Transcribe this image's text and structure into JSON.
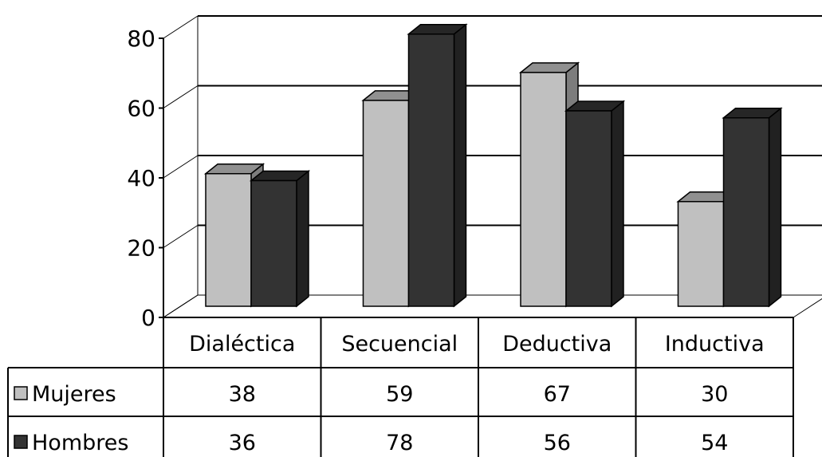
{
  "chart_data": {
    "type": "bar",
    "categories": [
      "Dialéctica",
      "Secuencial",
      "Deductiva",
      "Inductiva"
    ],
    "series": [
      {
        "name": "Mujeres",
        "values": [
          38,
          59,
          67,
          30
        ],
        "color": "#c0c0c0"
      },
      {
        "name": "Hombres",
        "values": [
          36,
          78,
          56,
          54
        ],
        "color": "#333333"
      }
    ],
    "ylim": [
      0,
      80
    ],
    "yticks": [
      0,
      20,
      40,
      60,
      80
    ],
    "grid": true,
    "legend": "data-table-left",
    "three_d": true
  }
}
